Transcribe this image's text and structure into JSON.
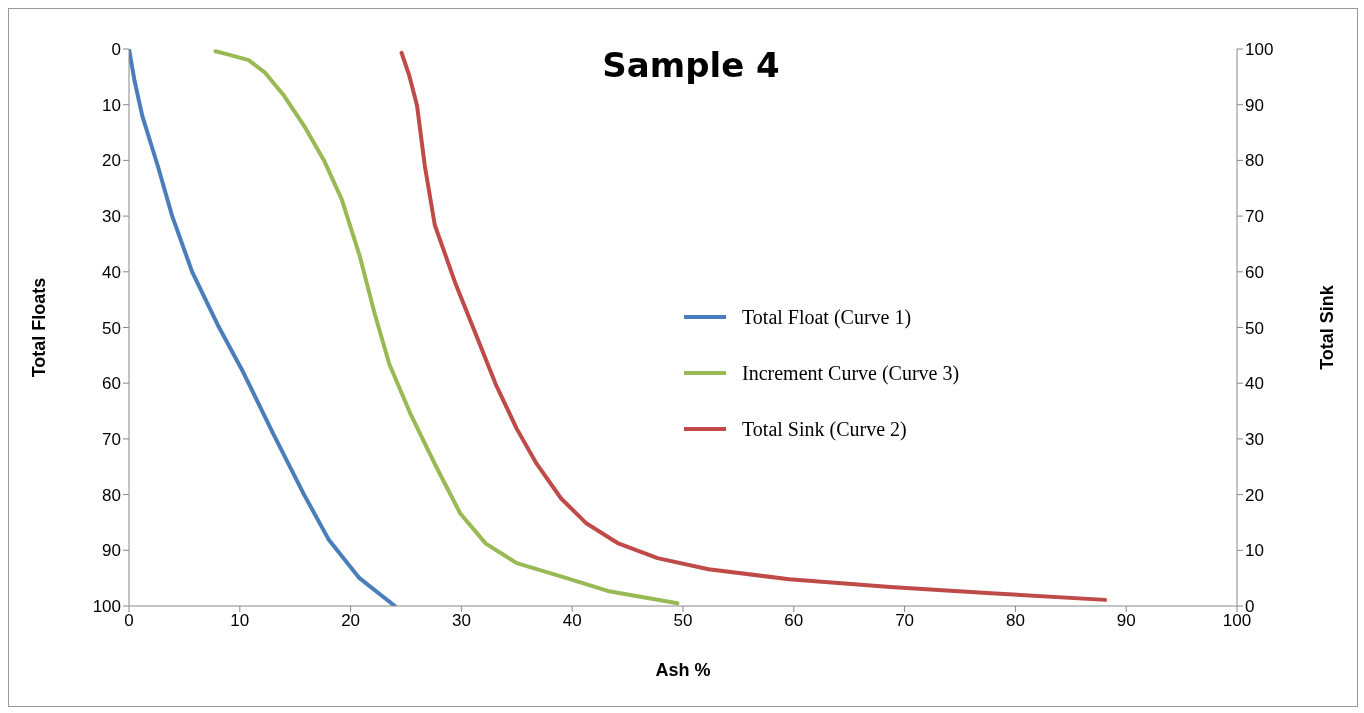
{
  "chart_data": {
    "type": "line",
    "title": "Sample 4",
    "xlabel": "Ash %",
    "ylabel": "Total Floats",
    "y2label": "Total Sink",
    "xlim": [
      0,
      100
    ],
    "xticks": [
      0,
      10,
      20,
      30,
      40,
      50,
      60,
      70,
      80,
      90,
      100
    ],
    "ylim": [
      100,
      0
    ],
    "yticks": [
      0,
      10,
      20,
      30,
      40,
      50,
      60,
      70,
      80,
      90,
      100
    ],
    "y2lim": [
      0,
      100
    ],
    "y2ticks": [
      0,
      10,
      20,
      30,
      40,
      50,
      60,
      70,
      80,
      90,
      100
    ],
    "grid": false,
    "legend": "right",
    "marker": "none",
    "line_style": "solid",
    "series": [
      {
        "name": "Total Float (Curve 1)",
        "color": "#4a7ebb",
        "x": [
          0,
          0.5,
          1.2,
          2.6,
          3.9,
          5.7,
          8,
          10.3,
          13,
          15.8,
          18,
          20.8,
          24
        ],
        "values": [
          0,
          5.7,
          12,
          21,
          30,
          40,
          49.5,
          58,
          69,
          80,
          88,
          95,
          100
        ]
      },
      {
        "name": "Increment Curve (Curve 3)",
        "color": "#98b954",
        "x": [
          7.8,
          9,
          10.8,
          12.3,
          14,
          15.8,
          17.6,
          19.2,
          20.8,
          22.2,
          23.5,
          25.4,
          27.6,
          29.9,
          32.2,
          35,
          39.5,
          43.2,
          49.5
        ],
        "values": [
          0.4,
          1,
          2,
          4.3,
          8.4,
          13.8,
          20,
          27,
          37,
          47.7,
          56.6,
          65.5,
          74.5,
          83.4,
          88.8,
          92.3,
          95,
          97.3,
          99.5
        ]
      },
      {
        "name": "Total Sink (Curve 2)",
        "color": "#be4b48",
        "axis": "y2",
        "x": [
          24.6,
          25.3,
          26,
          26.7,
          27.6,
          29.5,
          31.3,
          33.1,
          35,
          36.8,
          39,
          41.3,
          44.1,
          47.7,
          52.3,
          59.6,
          68.7,
          77.8,
          88.1
        ],
        "values": [
          99.3,
          95.2,
          89.8,
          79,
          68.4,
          57.7,
          48.8,
          39.8,
          31.8,
          25.5,
          19.3,
          14.8,
          11.3,
          8.6,
          6.6,
          4.8,
          3.4,
          2.3,
          1.1
        ]
      }
    ]
  }
}
